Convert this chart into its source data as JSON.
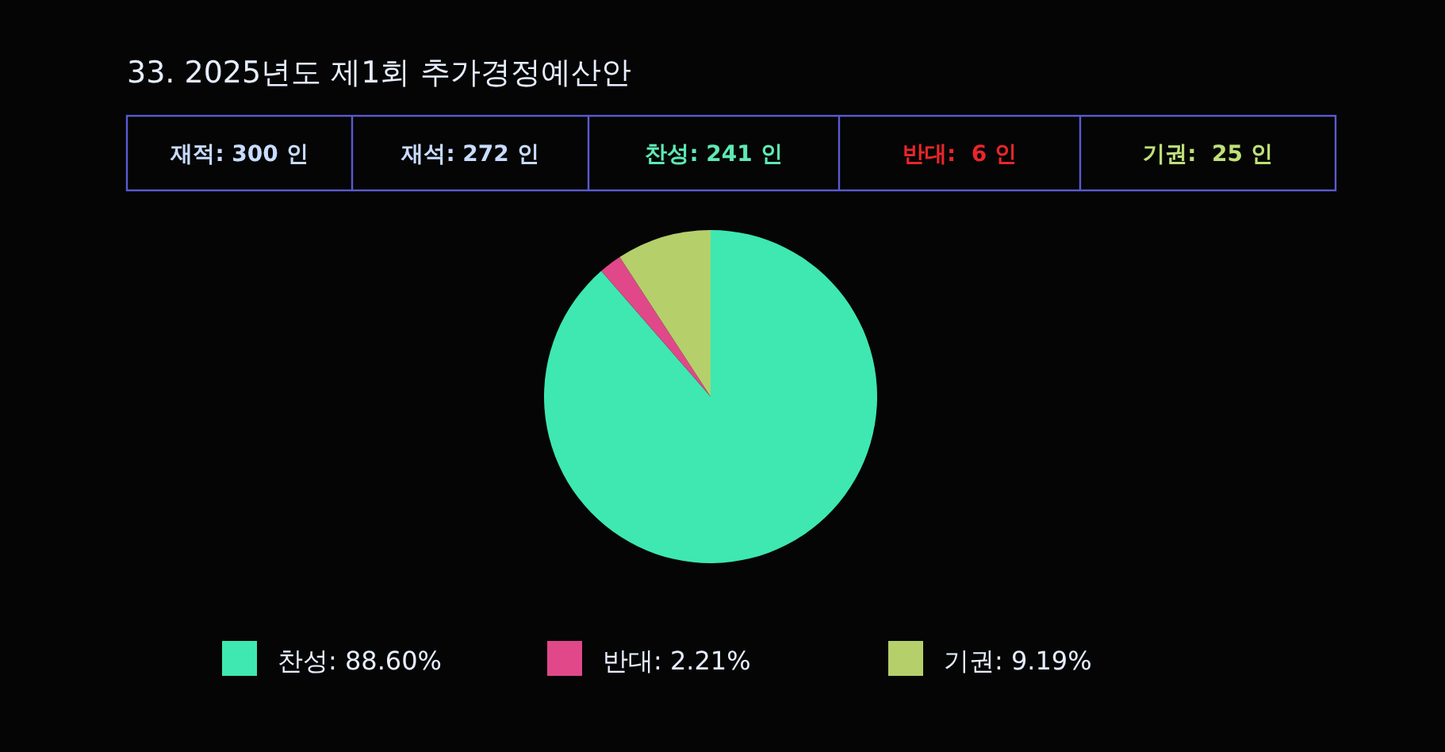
{
  "chart_data": {
    "type": "pie",
    "title": "33. 2025년도 제1회 추가경정예산안",
    "annotations": [
      "재적: 300 인",
      "재석: 272 인",
      "찬성: 241 인",
      "반대:  6 인",
      "기권:  25 인"
    ],
    "categories": [
      "찬성",
      "반대",
      "기권"
    ],
    "values": [
      88.6,
      2.21,
      9.19
    ],
    "value_labels": [
      "88.60%",
      "2.21%",
      "9.19%"
    ],
    "colors": [
      "#3ee8b0",
      "#e0488a",
      "#b5cf6b"
    ],
    "legend": "bottom"
  }
}
